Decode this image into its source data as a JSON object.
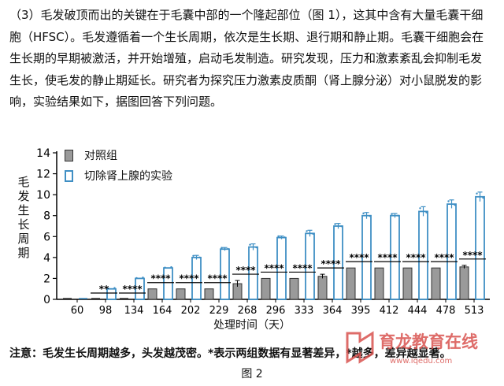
{
  "paragraph_lines": [
    "（3）毛发破顶而出的关键在于毛囊中部的一个隆起部位（图 1），这其中含有大量毛囊干细",
    "胞（HFSC）。毛发遵循着一个生长周期，依次是生长期、退行期和静止期。毛囊干细胞会在",
    "生长期的早期被激活，并开始增殖，启动毛发制造。研究发现，压力和激素紊乱会抑制毛发",
    "生长，使毛发的静止期延长。研究者为探究压力激素皮质酮（肾上腺分泌）对小鼠脱发的影",
    "响，实验结果如下，据图回答下列问题。"
  ],
  "note": "注意：毛发生长周期越多，头发越茂密。*表示两组数据有显著差异，*越多，差异越显著。",
  "figure_label": "图 2",
  "watermark": {
    "line1": "育龙教育在线",
    "line2": "www.iqedu.com"
  },
  "chart_data": {
    "type": "bar",
    "title": "",
    "xlabel": "处理时间（天）",
    "ylabel": "毛发生长周期",
    "ylim": [
      0,
      14
    ],
    "yticks": [
      0,
      2,
      4,
      6,
      8,
      10,
      12,
      14
    ],
    "grid": false,
    "legend_position": "top-left",
    "categories": [
      "60",
      "98",
      "134",
      "164",
      "202",
      "229",
      "268",
      "296",
      "333",
      "364",
      "395",
      "412",
      "444",
      "478",
      "513"
    ],
    "series": [
      {
        "name": "对照组",
        "color": "#9a9a9a",
        "values": [
          0,
          0,
          0,
          1,
          1,
          1,
          1.5,
          2,
          2,
          2.2,
          3,
          3,
          3,
          3,
          3.1
        ],
        "errors": [
          0,
          0,
          0,
          0,
          0,
          0,
          0.3,
          0,
          0,
          0.2,
          0,
          0,
          0,
          0,
          0.15
        ]
      },
      {
        "name": "切除肾上腺的实验",
        "color": "#3f8fc4",
        "values": [
          0,
          1,
          2,
          3,
          4,
          4.8,
          5,
          5.9,
          6.3,
          7,
          8,
          8,
          8.4,
          9.1,
          9.8
        ],
        "errors": [
          0,
          0,
          0,
          0,
          0.2,
          0.15,
          0.3,
          0.15,
          0.3,
          0.25,
          0.3,
          0.2,
          0.45,
          0.4,
          0.45
        ]
      }
    ],
    "significance": [
      "",
      "**",
      "****",
      "****",
      "****",
      "****",
      "****",
      "****",
      "****",
      "****",
      "****",
      "****",
      "****",
      "****",
      "****"
    ]
  }
}
